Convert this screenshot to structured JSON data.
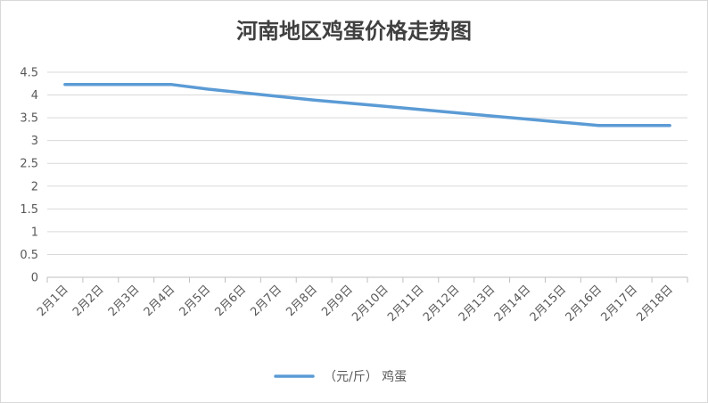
{
  "chart_data": {
    "type": "line",
    "title": "河南地区鸡蛋价格走势图",
    "xlabel": "",
    "ylabel": "",
    "categories": [
      "2月1日",
      "2月2日",
      "2月3日",
      "2月4日",
      "2月5日",
      "2月6日",
      "2月7日",
      "2月8日",
      "2月9日",
      "2月10日",
      "2月11日",
      "2月12日",
      "2月13日",
      "2月14日",
      "2月15日",
      "2月16日",
      "2月17日",
      "2月18日"
    ],
    "series": [
      {
        "name": "（元/斤） 鸡蛋",
        "color": "#5b9bd5",
        "values": [
          4.23,
          4.23,
          4.23,
          4.23,
          4.13,
          4.05,
          3.97,
          3.89,
          3.82,
          3.75,
          3.68,
          3.61,
          3.54,
          3.47,
          3.4,
          3.33,
          3.33,
          3.33
        ]
      }
    ],
    "ylim": [
      0,
      4.5
    ],
    "yticks": [
      0,
      0.5,
      1,
      1.5,
      2,
      2.5,
      3,
      3.5,
      4,
      4.5
    ],
    "ytick_labels": [
      "0",
      "0.5",
      "1",
      "1.5",
      "2",
      "2.5",
      "3",
      "3.5",
      "4",
      "4.5"
    ],
    "grid": true,
    "legend_position": "bottom"
  }
}
